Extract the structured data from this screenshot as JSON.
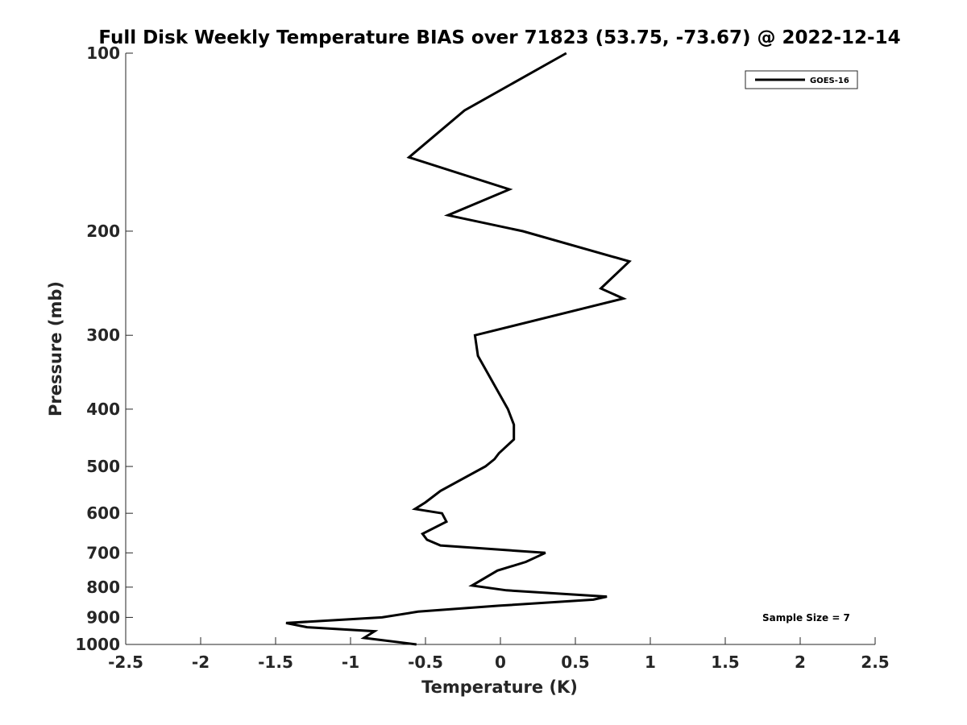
{
  "chart_data": {
    "type": "line",
    "title": "Full Disk Weekly Temperature BIAS over 71823 (53.75, -73.67) @ 2022-12-14",
    "xlabel": "Temperature (K)",
    "ylabel": "Pressure (mb)",
    "xlim": [
      -2.5,
      2.5
    ],
    "ylim": [
      100,
      1000
    ],
    "yscale": "log",
    "y_reversed": true,
    "xticks": [
      -2.5,
      -2,
      -1.5,
      -1,
      -0.5,
      0,
      0.5,
      1,
      1.5,
      2,
      2.5
    ],
    "xtick_labels": [
      "-2.5",
      "-2",
      "-1.5",
      "-1",
      "-0.5",
      "0",
      "0.5",
      "1",
      "1.5",
      "2",
      "2.5"
    ],
    "yticks": [
      100,
      200,
      300,
      400,
      500,
      600,
      700,
      800,
      900,
      1000
    ],
    "ytick_labels": [
      "100",
      "200",
      "300",
      "400",
      "500",
      "600",
      "700",
      "800",
      "900",
      "1000"
    ],
    "grid": false,
    "legend_position": "top-right",
    "series": [
      {
        "name": "GOES-16",
        "color": "#000000",
        "points": [
          {
            "t": 0.44,
            "p": 100
          },
          {
            "t": -0.24,
            "p": 125
          },
          {
            "t": -0.61,
            "p": 150
          },
          {
            "t": 0.06,
            "p": 170
          },
          {
            "t": -0.35,
            "p": 188
          },
          {
            "t": 0.15,
            "p": 200
          },
          {
            "t": 0.86,
            "p": 225
          },
          {
            "t": 0.67,
            "p": 250
          },
          {
            "t": 0.82,
            "p": 260
          },
          {
            "t": -0.17,
            "p": 300
          },
          {
            "t": -0.15,
            "p": 325
          },
          {
            "t": 0.05,
            "p": 400
          },
          {
            "t": 0.09,
            "p": 425
          },
          {
            "t": 0.09,
            "p": 450
          },
          {
            "t": -0.01,
            "p": 475
          },
          {
            "t": -0.04,
            "p": 486
          },
          {
            "t": -0.1,
            "p": 500
          },
          {
            "t": -0.4,
            "p": 550
          },
          {
            "t": -0.5,
            "p": 575
          },
          {
            "t": -0.57,
            "p": 590
          },
          {
            "t": -0.39,
            "p": 600
          },
          {
            "t": -0.36,
            "p": 620
          },
          {
            "t": -0.52,
            "p": 650
          },
          {
            "t": -0.49,
            "p": 665
          },
          {
            "t": -0.4,
            "p": 680
          },
          {
            "t": 0.3,
            "p": 700
          },
          {
            "t": 0.17,
            "p": 725
          },
          {
            "t": -0.02,
            "p": 750
          },
          {
            "t": -0.19,
            "p": 795
          },
          {
            "t": 0.04,
            "p": 810
          },
          {
            "t": 0.71,
            "p": 830
          },
          {
            "t": 0.62,
            "p": 840
          },
          {
            "t": -0.01,
            "p": 860
          },
          {
            "t": -0.55,
            "p": 880
          },
          {
            "t": -0.79,
            "p": 900
          },
          {
            "t": -1.43,
            "p": 920
          },
          {
            "t": -1.29,
            "p": 935
          },
          {
            "t": -0.84,
            "p": 950
          },
          {
            "t": -0.91,
            "p": 975
          },
          {
            "t": -0.56,
            "p": 1000
          }
        ]
      }
    ],
    "annotation": "Sample Size = 7"
  }
}
